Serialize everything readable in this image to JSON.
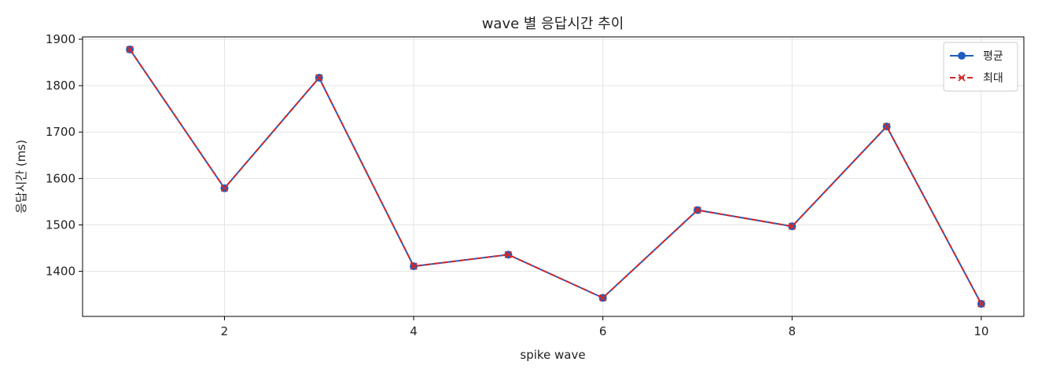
{
  "chart_data": {
    "type": "line",
    "title": "wave 별 응답시간 추이",
    "xlabel": "spike wave",
    "ylabel": "응답시간 (ms)",
    "x": [
      1,
      2,
      3,
      4,
      5,
      6,
      7,
      8,
      9,
      10
    ],
    "series": [
      {
        "name": "평균",
        "values": [
          1878,
          1579,
          1817,
          1411,
          1436,
          1343,
          1532,
          1497,
          1712,
          1330
        ],
        "color": "#1f5fbf",
        "marker": "circle",
        "line_style": "solid"
      },
      {
        "name": "최대",
        "values": [
          1878,
          1579,
          1817,
          1411,
          1436,
          1343,
          1532,
          1497,
          1712,
          1330
        ],
        "color": "#d62728",
        "marker": "x",
        "line_style": "dashed"
      }
    ],
    "xlim": [
      0.5,
      10.45
    ],
    "ylim": [
      1303,
      1905
    ],
    "xticks": [
      2,
      4,
      6,
      8,
      10
    ],
    "yticks": [
      1400,
      1500,
      1600,
      1700,
      1800,
      1900
    ],
    "grid": true,
    "legend_position": "top-right"
  }
}
